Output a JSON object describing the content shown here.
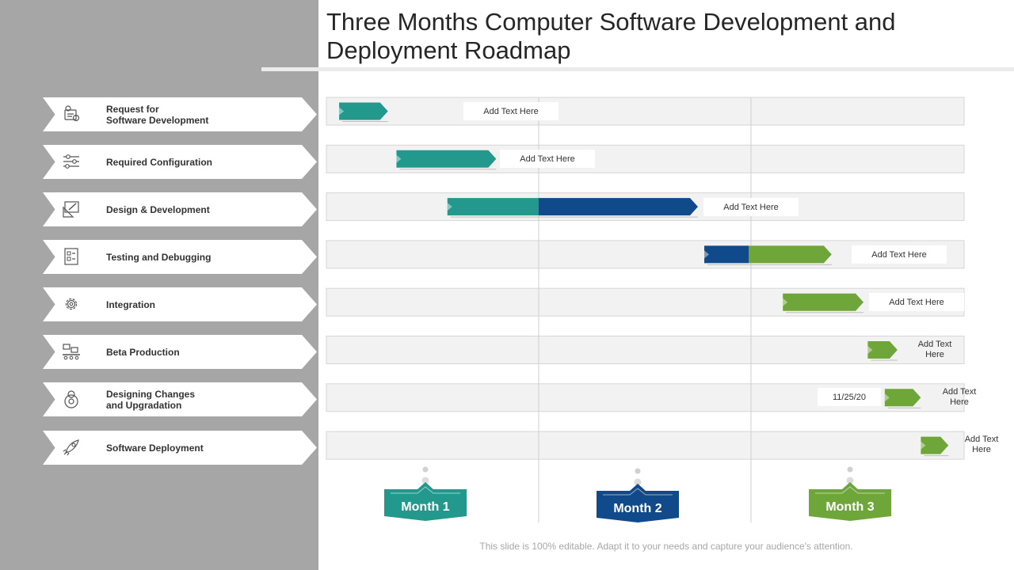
{
  "title": "Three Months Computer Software Development and Deployment Roadmap",
  "footer": "This slide is 100% editable. Adapt it to your needs and capture your audience's attention.",
  "colors": {
    "teal": "#23998e",
    "navy": "#114a8b",
    "green": "#6fa63a",
    "panel": "#a6a6a6",
    "row": "#f2f2f2"
  },
  "tasks": [
    {
      "label": "Request for\nSoftware Development",
      "icon": "request-icon",
      "note": "Add Text Here"
    },
    {
      "label": "Required Configuration",
      "icon": "sliders-icon",
      "note": "Add Text Here"
    },
    {
      "label": "Design & Development",
      "icon": "design-icon",
      "note": "Add Text Here"
    },
    {
      "label": "Testing and Debugging",
      "icon": "testing-icon",
      "note": "Add Text Here"
    },
    {
      "label": "Integration",
      "icon": "gear-icon",
      "note": "Add Text Here"
    },
    {
      "label": "Beta Production",
      "icon": "conveyor-icon",
      "note": "Add Text\nHere"
    },
    {
      "label": "Designing Changes\nand Upgradation",
      "icon": "upgrade-icon",
      "note": "Add Text\nHere",
      "date": "11/25/20"
    },
    {
      "label": "Software Deployment",
      "icon": "rocket-icon",
      "note": "Add Text\nHere"
    }
  ],
  "chart_data": {
    "type": "gantt",
    "x_unit": "months",
    "xlim": [
      0,
      3
    ],
    "months": [
      {
        "label": "Month 1",
        "color": "#23998e"
      },
      {
        "label": "Month 2",
        "color": "#114a8b"
      },
      {
        "label": "Month 3",
        "color": "#6fa63a"
      }
    ],
    "bars": [
      {
        "task": "Request for Software Development",
        "segments": [
          {
            "start": 0.06,
            "end": 0.29,
            "color": "#23998e"
          }
        ]
      },
      {
        "task": "Required Configuration",
        "segments": [
          {
            "start": 0.33,
            "end": 0.8,
            "color": "#23998e"
          }
        ]
      },
      {
        "task": "Design & Development",
        "segments": [
          {
            "start": 0.57,
            "end": 1.0,
            "color": "#23998e"
          },
          {
            "start": 1.0,
            "end": 1.75,
            "color": "#114a8b"
          }
        ]
      },
      {
        "task": "Testing and Debugging",
        "segments": [
          {
            "start": 1.78,
            "end": 1.99,
            "color": "#114a8b"
          },
          {
            "start": 1.99,
            "end": 2.38,
            "color": "#6fa63a"
          }
        ]
      },
      {
        "task": "Integration",
        "segments": [
          {
            "start": 2.15,
            "end": 2.53,
            "color": "#6fa63a"
          }
        ]
      },
      {
        "task": "Beta Production",
        "segments": [
          {
            "start": 2.55,
            "end": 2.69,
            "color": "#6fa63a"
          }
        ]
      },
      {
        "task": "Designing Changes and Upgradation",
        "segments": [
          {
            "start": 2.63,
            "end": 2.8,
            "color": "#6fa63a"
          }
        ]
      },
      {
        "task": "Software Deployment",
        "segments": [
          {
            "start": 2.8,
            "end": 2.93,
            "color": "#6fa63a"
          }
        ]
      }
    ]
  }
}
